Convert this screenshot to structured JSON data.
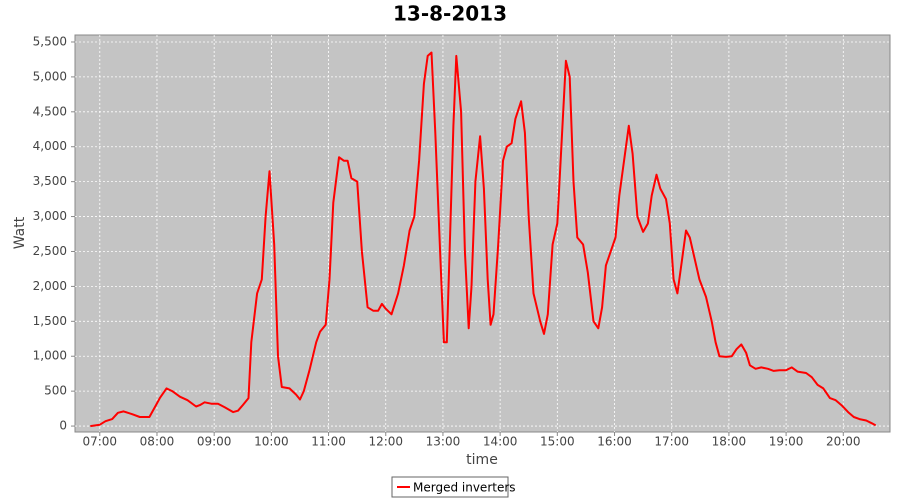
{
  "chart_data": {
    "type": "line",
    "title": "13-8-2013",
    "x_label": "time",
    "y_label": "Watt",
    "x": [
      410,
      420,
      426,
      433,
      439,
      445,
      454,
      462,
      472,
      479,
      483,
      490,
      496,
      504,
      512,
      521,
      525,
      530,
      537,
      544,
      551,
      560,
      565,
      570,
      576,
      579,
      585,
      590,
      594,
      598,
      603,
      607,
      611,
      619,
      626,
      630,
      634,
      640,
      647,
      651,
      657,
      661,
      665,
      671,
      676,
      680,
      684,
      690,
      695,
      701,
      707,
      712,
      716,
      720,
      726,
      733,
      739,
      745,
      750,
      755,
      760,
      764,
      768,
      772,
      777,
      781,
      784,
      787,
      791,
      794,
      799,
      803,
      807,
      810,
      814,
      819,
      823,
      827,
      830,
      833,
      838,
      843,
      847,
      852,
      856,
      862,
      866,
      870,
      875,
      882,
      886,
      890,
      895,
      900,
      905,
      909,
      913,
      917,
      921,
      927,
      932,
      938,
      943,
      947,
      951,
      956,
      961,
      965,
      971,
      975,
      979,
      984,
      990,
      995,
      999,
      1004,
      1008,
      1014,
      1018,
      1022,
      1026,
      1031,
      1035,
      1039,
      1044,
      1049,
      1056,
      1062,
      1066,
      1070,
      1077,
      1083,
      1088,
      1093,
      1098,
      1102,
      1108,
      1114,
      1121,
      1127,
      1133,
      1140,
      1146,
      1152,
      1161,
      1167,
      1173,
      1179,
      1186,
      1192,
      1198,
      1205,
      1211,
      1217,
      1224,
      1230,
      1234
    ],
    "series": [
      {
        "name": "Merged inverters",
        "color": "#ff0000",
        "values": [
          0,
          20,
          70,
          100,
          190,
          210,
          170,
          130,
          130,
          300,
          400,
          540,
          500,
          420,
          370,
          280,
          300,
          340,
          320,
          320,
          270,
          200,
          220,
          300,
          400,
          1200,
          1900,
          2100,
          3000,
          3650,
          2600,
          1000,
          560,
          540,
          450,
          380,
          500,
          800,
          1200,
          1350,
          1450,
          2100,
          3200,
          3850,
          3800,
          3800,
          3550,
          3500,
          2500,
          1700,
          1650,
          1650,
          1750,
          1680,
          1600,
          1900,
          2300,
          2800,
          3000,
          3800,
          4900,
          5300,
          5350,
          4200,
          2500,
          1200,
          1200,
          2500,
          4300,
          5300,
          4500,
          2500,
          1400,
          2000,
          3500,
          4150,
          3400,
          2100,
          1450,
          1600,
          2600,
          3800,
          4000,
          4050,
          4400,
          4650,
          4200,
          3000,
          1900,
          1500,
          1320,
          1600,
          2600,
          2900,
          4200,
          5230,
          5000,
          3500,
          2700,
          2600,
          2200,
          1500,
          1400,
          1700,
          2300,
          2500,
          2700,
          3300,
          3900,
          4300,
          3900,
          3000,
          2780,
          2900,
          3300,
          3600,
          3400,
          3250,
          2900,
          2100,
          1900,
          2400,
          2800,
          2700,
          2400,
          2100,
          1850,
          1500,
          1200,
          1000,
          990,
          1000,
          1100,
          1170,
          1050,
          870,
          820,
          840,
          820,
          790,
          800,
          800,
          840,
          780,
          760,
          700,
          590,
          540,
          400,
          370,
          300,
          200,
          130,
          100,
          80,
          40,
          10
        ]
      }
    ],
    "xlim": [
      394,
      1249
    ],
    "xticks": [
      {
        "value": 420,
        "label": "07:00"
      },
      {
        "value": 480,
        "label": "08:00"
      },
      {
        "value": 540,
        "label": "09:00"
      },
      {
        "value": 600,
        "label": "10:00"
      },
      {
        "value": 660,
        "label": "11:00"
      },
      {
        "value": 720,
        "label": "12:00"
      },
      {
        "value": 780,
        "label": "13:00"
      },
      {
        "value": 840,
        "label": "14:00"
      },
      {
        "value": 900,
        "label": "15:00"
      },
      {
        "value": 960,
        "label": "16:00"
      },
      {
        "value": 1020,
        "label": "17:00"
      },
      {
        "value": 1080,
        "label": "18:00"
      },
      {
        "value": 1140,
        "label": "19:00"
      },
      {
        "value": 1200,
        "label": "20:00"
      }
    ],
    "ylim": [
      -85,
      5600
    ],
    "yticks": [
      0,
      500,
      {
        "value": 1000,
        "label": "1,000"
      },
      {
        "value": 1500,
        "label": "1,500"
      },
      {
        "value": 2000,
        "label": "2,000"
      },
      {
        "value": 2500,
        "label": "2,500"
      },
      {
        "value": 3000,
        "label": "3,000"
      },
      {
        "value": 3500,
        "label": "3,500"
      },
      {
        "value": 4000,
        "label": "4,000"
      },
      {
        "value": 4500,
        "label": "4,500"
      },
      {
        "value": 5000,
        "label": "5,000"
      },
      {
        "value": 5500,
        "label": "5,500"
      }
    ],
    "grid": true
  }
}
